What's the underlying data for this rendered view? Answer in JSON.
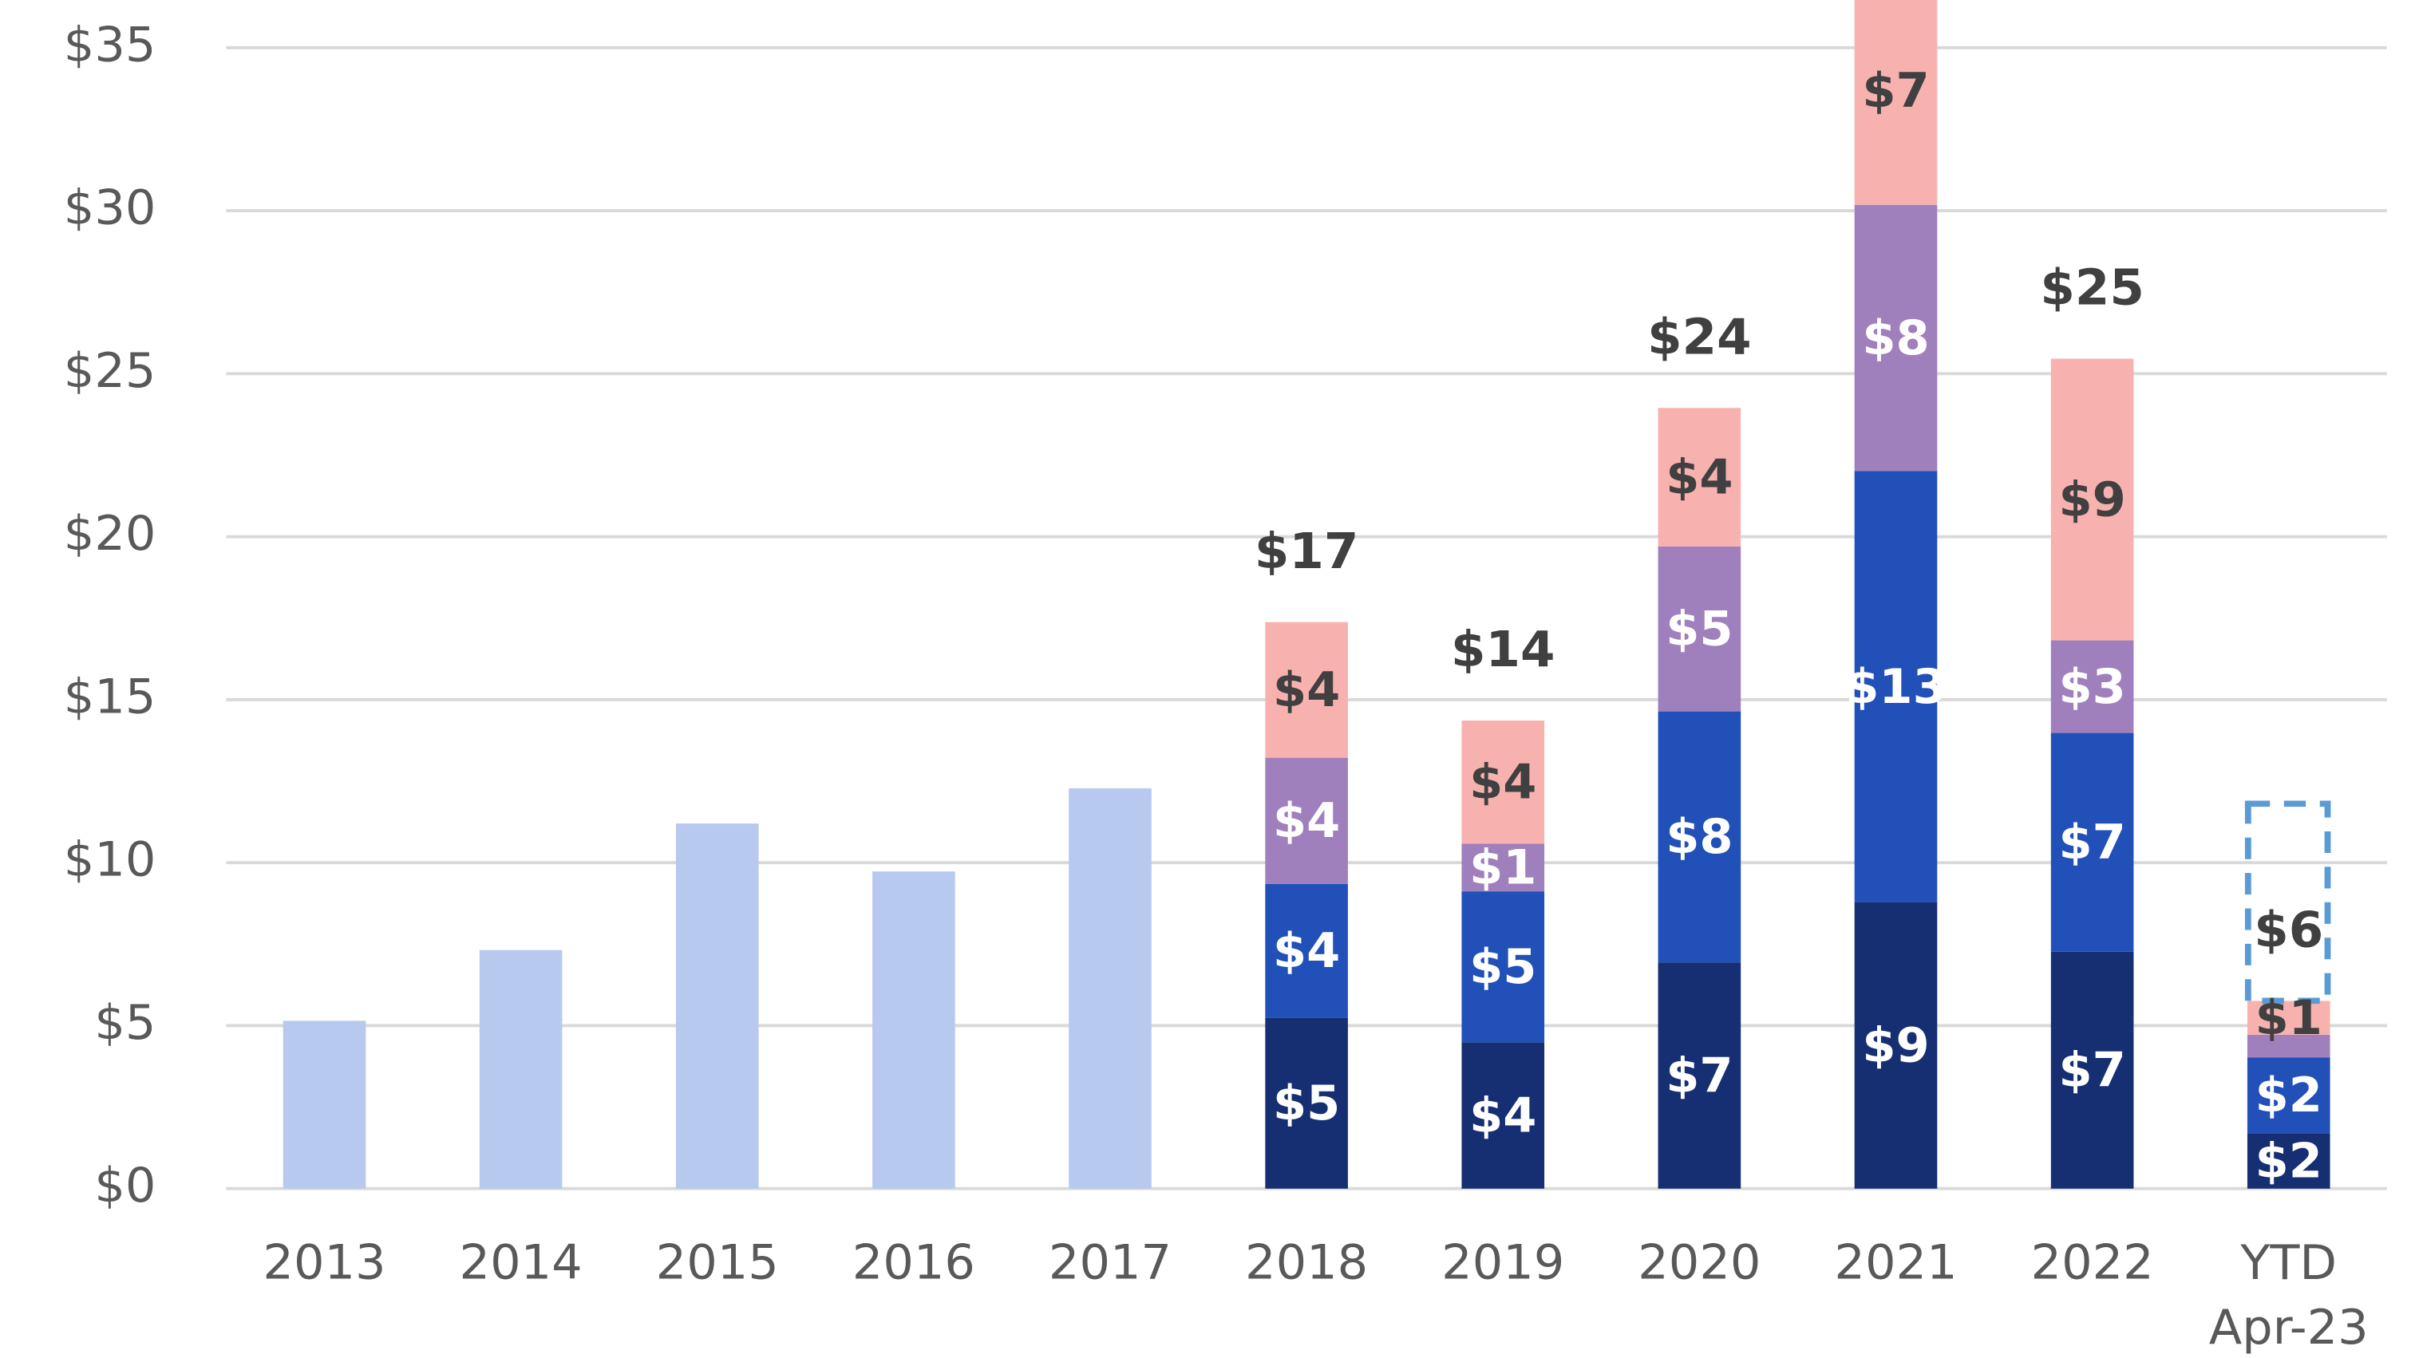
{
  "chart_data": {
    "type": "stacked_bar",
    "categories": [
      "2013",
      "2014",
      "2015",
      "2016",
      "2017",
      "2018",
      "2019",
      "2020",
      "2021",
      "2022",
      "YTD Apr-23"
    ],
    "series": [
      {
        "color": "#b8c9f0",
        "label_color": "#ffffff",
        "values": [
          5.15,
          7.32,
          11.2,
          9.73,
          12.28,
          null,
          null,
          null,
          null,
          null,
          null
        ],
        "value_labels": [
          null,
          null,
          null,
          null,
          null,
          null,
          null,
          null,
          null,
          null,
          null
        ]
      },
      {
        "color": "#162f73",
        "label_color": "#ffffff",
        "values": [
          null,
          null,
          null,
          null,
          null,
          5.24,
          4.49,
          6.94,
          8.79,
          7.27,
          1.7
        ],
        "value_labels": [
          null,
          null,
          null,
          null,
          null,
          "$5",
          "$4",
          "$7",
          "$9",
          "$7",
          "$2"
        ]
      },
      {
        "color": "#2150b8",
        "label_color": "#ffffff",
        "values": [
          null,
          null,
          null,
          null,
          null,
          4.11,
          4.63,
          7.7,
          13.22,
          6.71,
          2.32
        ],
        "value_labels": [
          null,
          null,
          null,
          null,
          null,
          "$4",
          "$5",
          "$8",
          "$13",
          "$7",
          "$2"
        ]
      },
      {
        "color": "#a07fbd",
        "label_color": "#ffffff",
        "values": [
          null,
          null,
          null,
          null,
          null,
          3.87,
          1.46,
          5.06,
          8.17,
          2.84,
          0.7
        ],
        "value_labels": [
          null,
          null,
          null,
          null,
          null,
          "$4",
          "$1",
          "$5",
          "$8",
          "$3",
          null
        ]
      },
      {
        "color": "#f7b2b0",
        "label_color": "#404040",
        "values": [
          null,
          null,
          null,
          null,
          null,
          4.16,
          3.78,
          4.25,
          7.0,
          8.64,
          1.04
        ],
        "value_labels": [
          null,
          null,
          null,
          null,
          null,
          "$4",
          "$4",
          "$4",
          "$7",
          "$9",
          "$1"
        ]
      }
    ],
    "totals": {
      "values": [
        null,
        null,
        null,
        null,
        null,
        17.38,
        14.36,
        23.95,
        null,
        25.46,
        5.76
      ],
      "value_labels": [
        null,
        null,
        null,
        null,
        null,
        "$17",
        "$14",
        "$24",
        null,
        "$25",
        "$6"
      ]
    },
    "ylim": [
      0,
      35
    ],
    "yticks": [
      {
        "value": 0,
        "label": "$0"
      },
      {
        "value": 5,
        "label": "$5"
      },
      {
        "value": 10,
        "label": "$10"
      },
      {
        "value": 15,
        "label": "$15"
      },
      {
        "value": 20,
        "label": "$20"
      },
      {
        "value": 25,
        "label": "$25"
      },
      {
        "value": 30,
        "label": "$30"
      },
      {
        "value": 35,
        "label": "$35"
      }
    ],
    "grid": true
  }
}
